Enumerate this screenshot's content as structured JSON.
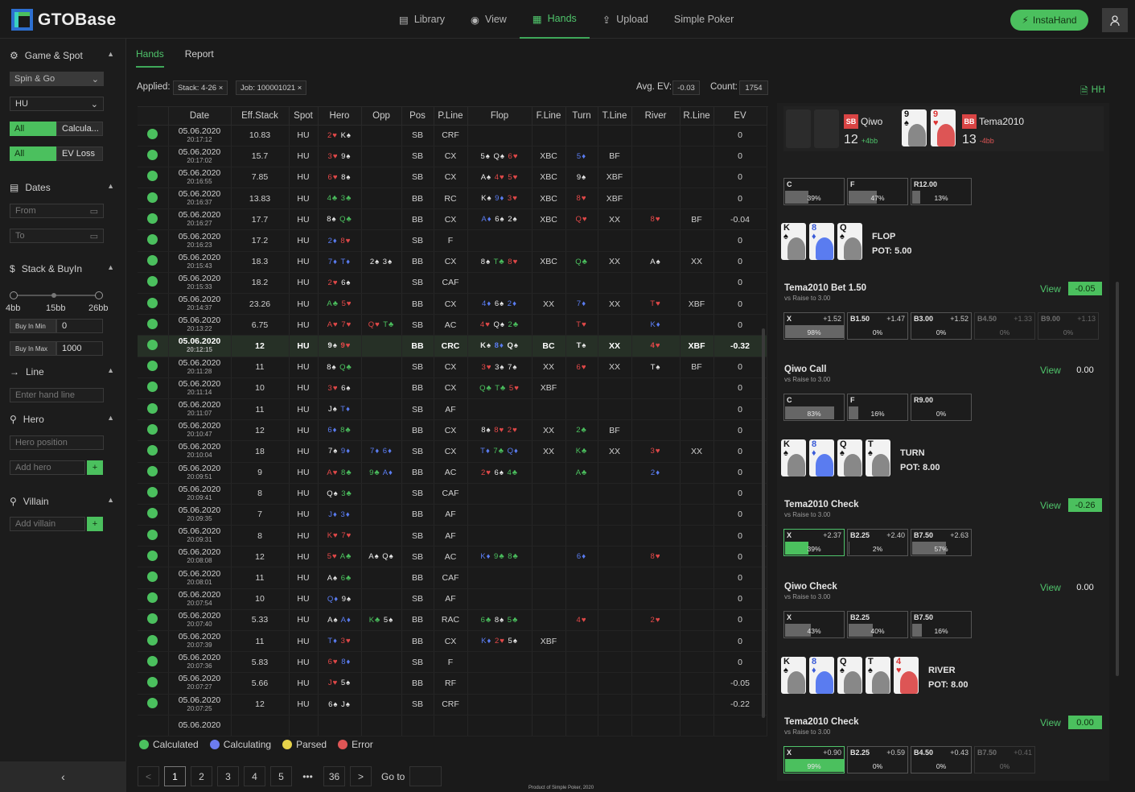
{
  "app": {
    "name": "GTOBase"
  },
  "nav": [
    {
      "label": "Library",
      "icon": "library-icon"
    },
    {
      "label": "View",
      "icon": "eye-icon"
    },
    {
      "label": "Hands",
      "icon": "grid-icon",
      "active": true
    },
    {
      "label": "Upload",
      "icon": "upload-icon"
    },
    {
      "label": "Simple Poker"
    }
  ],
  "insta_label": "InstaHand",
  "sidebar": {
    "game_spot": "Game & Spot",
    "game_select": "Spin & Go",
    "format_select": "HU",
    "seg1": [
      "All",
      "Calcula..."
    ],
    "seg2": [
      "All",
      "EV Loss"
    ],
    "dates": "Dates",
    "from": "From",
    "to": "To",
    "stack": "Stack & BuyIn",
    "ticks": [
      "4bb",
      "15bb",
      "26bb"
    ],
    "buyin_min_label": "Buy In Min",
    "buyin_min": "0",
    "buyin_max_label": "Buy In Max",
    "buyin_max": "1000",
    "line": "Line",
    "line_ph": "Enter hand line",
    "hero": "Hero",
    "hero_pos_ph": "Hero position",
    "add_hero_ph": "Add hero",
    "villain": "Villain",
    "add_villain_ph": "Add villain",
    "plus": "+"
  },
  "tabs": [
    "Hands",
    "Report"
  ],
  "filters": {
    "applied": "Applied:",
    "chips": [
      "Stack: 4-26 ×",
      "Job: 100001021 ×"
    ],
    "avg_ev_label": "Avg. EV:",
    "avg_ev": "-0.03",
    "count_label": "Count:",
    "count": "1754"
  },
  "columns": [
    "",
    "Date",
    "Eff.Stack",
    "Spot",
    "Hero",
    "Opp",
    "Pos",
    "P.Line",
    "Flop",
    "F.Line",
    "Turn",
    "T.Line",
    "River",
    "R.Line",
    "EV"
  ],
  "rows": [
    [
      "05.06.2020",
      "20:17:12",
      "10.83",
      "HU",
      "2♥ K♠",
      "",
      "SB",
      "CRF",
      "",
      "",
      "",
      "",
      "",
      "",
      "0"
    ],
    [
      "05.06.2020",
      "20:17:02",
      "15.7",
      "HU",
      "3♥ 9♠",
      "",
      "SB",
      "CX",
      "5♠ Q♠ 6♥",
      "XBC",
      "5♦",
      "BF",
      "",
      "",
      "0"
    ],
    [
      "05.06.2020",
      "20:16:55",
      "7.85",
      "HU",
      "6♥ 8♠",
      "",
      "SB",
      "CX",
      "A♠ 4♥ 5♥",
      "XBC",
      "9♠",
      "XBF",
      "",
      "",
      "0"
    ],
    [
      "05.06.2020",
      "20:16:37",
      "13.83",
      "HU",
      "4♣ 3♣",
      "",
      "BB",
      "RC",
      "K♠ 9♦ 3♥",
      "XBC",
      "8♥",
      "XBF",
      "",
      "",
      "0"
    ],
    [
      "05.06.2020",
      "20:16:27",
      "17.7",
      "HU",
      "8♠ Q♣",
      "",
      "BB",
      "CX",
      "A♦ 6♠ 2♠",
      "XBC",
      "Q♥",
      "XX",
      "8♥",
      "BF",
      "-0.04"
    ],
    [
      "05.06.2020",
      "20:16:23",
      "17.2",
      "HU",
      "2♦ 8♥",
      "",
      "SB",
      "F",
      "",
      "",
      "",
      "",
      "",
      "",
      "0"
    ],
    [
      "05.06.2020",
      "20:15:43",
      "18.3",
      "HU",
      "7♦ T♦",
      "2♠ 3♠",
      "BB",
      "CX",
      "8♠ T♣ 8♥",
      "XBC",
      "Q♣",
      "XX",
      "A♠",
      "XX",
      "0"
    ],
    [
      "05.06.2020",
      "20:15:33",
      "18.2",
      "HU",
      "2♥ 6♠",
      "",
      "SB",
      "CAF",
      "",
      "",
      "",
      "",
      "",
      "",
      "0"
    ],
    [
      "05.06.2020",
      "20:14:37",
      "23.26",
      "HU",
      "A♣ 5♥",
      "",
      "BB",
      "CX",
      "4♦ 6♠ 2♦",
      "XX",
      "7♦",
      "XX",
      "T♥",
      "XBF",
      "0"
    ],
    [
      "05.06.2020",
      "20:13:22",
      "6.75",
      "HU",
      "A♥ 7♥",
      "Q♥ T♣",
      "SB",
      "AC",
      "4♥ Q♠ 2♣",
      "",
      "T♥",
      "",
      "K♦",
      "",
      "0"
    ],
    [
      "05.06.2020",
      "20:12:15",
      "12",
      "HU",
      "9♠ 9♥",
      "",
      "BB",
      "CRC",
      "K♠ 8♦ Q♠",
      "BC",
      "T♠",
      "XX",
      "4♥",
      "XBF",
      "-0.32"
    ],
    [
      "05.06.2020",
      "20:11:28",
      "11",
      "HU",
      "8♠ Q♣",
      "",
      "SB",
      "CX",
      "3♥ 3♠ 7♠",
      "XX",
      "6♥",
      "XX",
      "T♠",
      "BF",
      "0"
    ],
    [
      "05.06.2020",
      "20:11:14",
      "10",
      "HU",
      "3♥ 6♠",
      "",
      "BB",
      "CX",
      "Q♣ T♣ 5♥",
      "XBF",
      "",
      "",
      "",
      "",
      "0"
    ],
    [
      "05.06.2020",
      "20:11:07",
      "11",
      "HU",
      "J♠ T♦",
      "",
      "SB",
      "AF",
      "",
      "",
      "",
      "",
      "",
      "",
      "0"
    ],
    [
      "05.06.2020",
      "20:10:47",
      "12",
      "HU",
      "6♦ 8♣",
      "",
      "BB",
      "CX",
      "8♠ 8♥ 2♥",
      "XX",
      "2♣",
      "BF",
      "",
      "",
      "0"
    ],
    [
      "05.06.2020",
      "20:10:04",
      "18",
      "HU",
      "7♠ 9♦",
      "7♦ 6♦",
      "SB",
      "CX",
      "T♦ 7♣ Q♦",
      "XX",
      "K♣",
      "XX",
      "3♥",
      "XX",
      "0"
    ],
    [
      "05.06.2020",
      "20:09:51",
      "9",
      "HU",
      "A♥ 8♣",
      "9♣ A♦",
      "BB",
      "AC",
      "2♥ 6♠ 4♣",
      "",
      "A♣",
      "",
      "2♦",
      "",
      "0"
    ],
    [
      "05.06.2020",
      "20:09:41",
      "8",
      "HU",
      "Q♠ 3♣",
      "",
      "SB",
      "CAF",
      "",
      "",
      "",
      "",
      "",
      "",
      "0"
    ],
    [
      "05.06.2020",
      "20:09:35",
      "7",
      "HU",
      "J♦ 3♦",
      "",
      "BB",
      "AF",
      "",
      "",
      "",
      "",
      "",
      "",
      "0"
    ],
    [
      "05.06.2020",
      "20:09:31",
      "8",
      "HU",
      "K♥ 7♥",
      "",
      "SB",
      "AF",
      "",
      "",
      "",
      "",
      "",
      "",
      "0"
    ],
    [
      "05.06.2020",
      "20:08:08",
      "12",
      "HU",
      "5♥ A♣",
      "A♠ Q♠",
      "SB",
      "AC",
      "K♦ 9♣ 8♣",
      "",
      "6♦",
      "",
      "8♥",
      "",
      "0"
    ],
    [
      "05.06.2020",
      "20:08:01",
      "11",
      "HU",
      "A♠ 6♣",
      "",
      "BB",
      "CAF",
      "",
      "",
      "",
      "",
      "",
      "",
      "0"
    ],
    [
      "05.06.2020",
      "20:07:54",
      "10",
      "HU",
      "Q♦ 9♠",
      "",
      "SB",
      "AF",
      "",
      "",
      "",
      "",
      "",
      "",
      "0"
    ],
    [
      "05.06.2020",
      "20:07:40",
      "5.33",
      "HU",
      "A♠ A♦",
      "K♣ 5♠",
      "BB",
      "RAC",
      "6♣ 8♠ 5♣",
      "",
      "4♥",
      "",
      "2♥",
      "",
      "0"
    ],
    [
      "05.06.2020",
      "20:07:39",
      "11",
      "HU",
      "T♦ 3♥",
      "",
      "BB",
      "CX",
      "K♦ 2♥ 5♠",
      "XBF",
      "",
      "",
      "",
      "",
      "0"
    ],
    [
      "05.06.2020",
      "20:07:36",
      "5.83",
      "HU",
      "6♥ 8♦",
      "",
      "SB",
      "F",
      "",
      "",
      "",
      "",
      "",
      "",
      "0"
    ],
    [
      "05.06.2020",
      "20:07:27",
      "5.66",
      "HU",
      "J♥ 5♠",
      "",
      "BB",
      "RF",
      "",
      "",
      "",
      "",
      "",
      "",
      "-0.05"
    ],
    [
      "05.06.2020",
      "20:07:25",
      "12",
      "HU",
      "6♠ J♠",
      "",
      "SB",
      "CRF",
      "",
      "",
      "",
      "",
      "",
      "",
      "-0.22"
    ],
    [
      "05.06.2020",
      "",
      "",
      "",
      "",
      "",
      "",
      "",
      "",
      "",
      "",
      "",
      "",
      "",
      ""
    ]
  ],
  "selected_row": 10,
  "legend": [
    {
      "label": "Calculated",
      "color": "#4bc05e"
    },
    {
      "label": "Calculating",
      "color": "#6c7cf0"
    },
    {
      "label": "Parsed",
      "color": "#e6d24a"
    },
    {
      "label": "Error",
      "color": "#e05656"
    }
  ],
  "pager": {
    "prev": "<",
    "pages": [
      "1",
      "2",
      "3",
      "4",
      "5",
      "•••",
      "36"
    ],
    "next": ">",
    "goto": "Go to"
  },
  "credit": "Product of Simple Poker, 2020",
  "hh": "HH",
  "players": {
    "sb": {
      "pos": "SB",
      "name": "Qiwo",
      "stack": "12",
      "delta": "+4bb"
    },
    "bb": {
      "pos": "BB",
      "name": "Tema2010",
      "stack": "13",
      "delta": "-4bb"
    }
  },
  "preflop_actions": [
    {
      "label": "C",
      "pct": "39%"
    },
    {
      "label": "F",
      "pct": "47%"
    },
    {
      "label": "R12.00",
      "pct": "13%"
    }
  ],
  "flop": {
    "street": "FLOP",
    "pot": "POT: 5.00"
  },
  "turn": {
    "street": "TURN",
    "pot": "POT: 8.00"
  },
  "river": {
    "street": "RIVER",
    "pot": "POT: 8.00"
  },
  "blocks": [
    {
      "title": "Tema2010 Bet 1.50",
      "sub": "vs Raise to 3.00",
      "view": "View",
      "ev": "-0.05",
      "evg": true,
      "actions": [
        {
          "l": "X",
          "v": "+1.52",
          "p": "98%"
        },
        {
          "l": "B1.50",
          "v": "+1.47",
          "p": "0%"
        },
        {
          "l": "B3.00",
          "v": "+1.52",
          "p": "0%"
        },
        {
          "l": "B4.50",
          "v": "+1.33",
          "p": "0%"
        },
        {
          "l": "B9.00",
          "v": "+1.13",
          "p": "0%"
        }
      ]
    },
    {
      "title": "Qiwo Call",
      "sub": "vs Raise to 3.00",
      "view": "View",
      "ev": "0.00",
      "evg": false,
      "actions": [
        {
          "l": "C",
          "v": "",
          "p": "83%"
        },
        {
          "l": "F",
          "v": "",
          "p": "16%"
        },
        {
          "l": "R9.00",
          "v": "",
          "p": "0%"
        }
      ]
    },
    {
      "title": "Tema2010 Check",
      "sub": "vs Raise to 3.00",
      "view": "View",
      "ev": "-0.26",
      "evg": true,
      "actions": [
        {
          "l": "X",
          "v": "+2.37",
          "p": "39%"
        },
        {
          "l": "B2.25",
          "v": "+2.40",
          "p": "2%"
        },
        {
          "l": "B7.50",
          "v": "+2.63",
          "p": "57%"
        }
      ]
    },
    {
      "title": "Qiwo Check",
      "sub": "vs Raise to 3.00",
      "view": "View",
      "ev": "0.00",
      "evg": false,
      "actions": [
        {
          "l": "X",
          "v": "",
          "p": "43%"
        },
        {
          "l": "B2.25",
          "v": "",
          "p": "40%"
        },
        {
          "l": "B7.50",
          "v": "",
          "p": "16%"
        }
      ]
    },
    {
      "title": "Tema2010 Check",
      "sub": "vs Raise to 3.00",
      "view": "View",
      "ev": "0.00",
      "evg": true,
      "actions": [
        {
          "l": "X",
          "v": "+0.90",
          "p": "99%"
        },
        {
          "l": "B2.25",
          "v": "+0.59",
          "p": "0%"
        },
        {
          "l": "B4.50",
          "v": "+0.43",
          "p": "0%"
        },
        {
          "l": "B7.50",
          "v": "+0.41",
          "p": "0%"
        }
      ]
    }
  ],
  "hole_cards_bb": [
    {
      "r": "9",
      "s": "♠"
    },
    {
      "r": "9",
      "s": "♥"
    }
  ],
  "board": [
    {
      "r": "K",
      "s": "♠"
    },
    {
      "r": "8",
      "s": "♦"
    },
    {
      "r": "Q",
      "s": "♠"
    },
    {
      "r": "T",
      "s": "♠"
    },
    {
      "r": "4",
      "s": "♥"
    }
  ]
}
